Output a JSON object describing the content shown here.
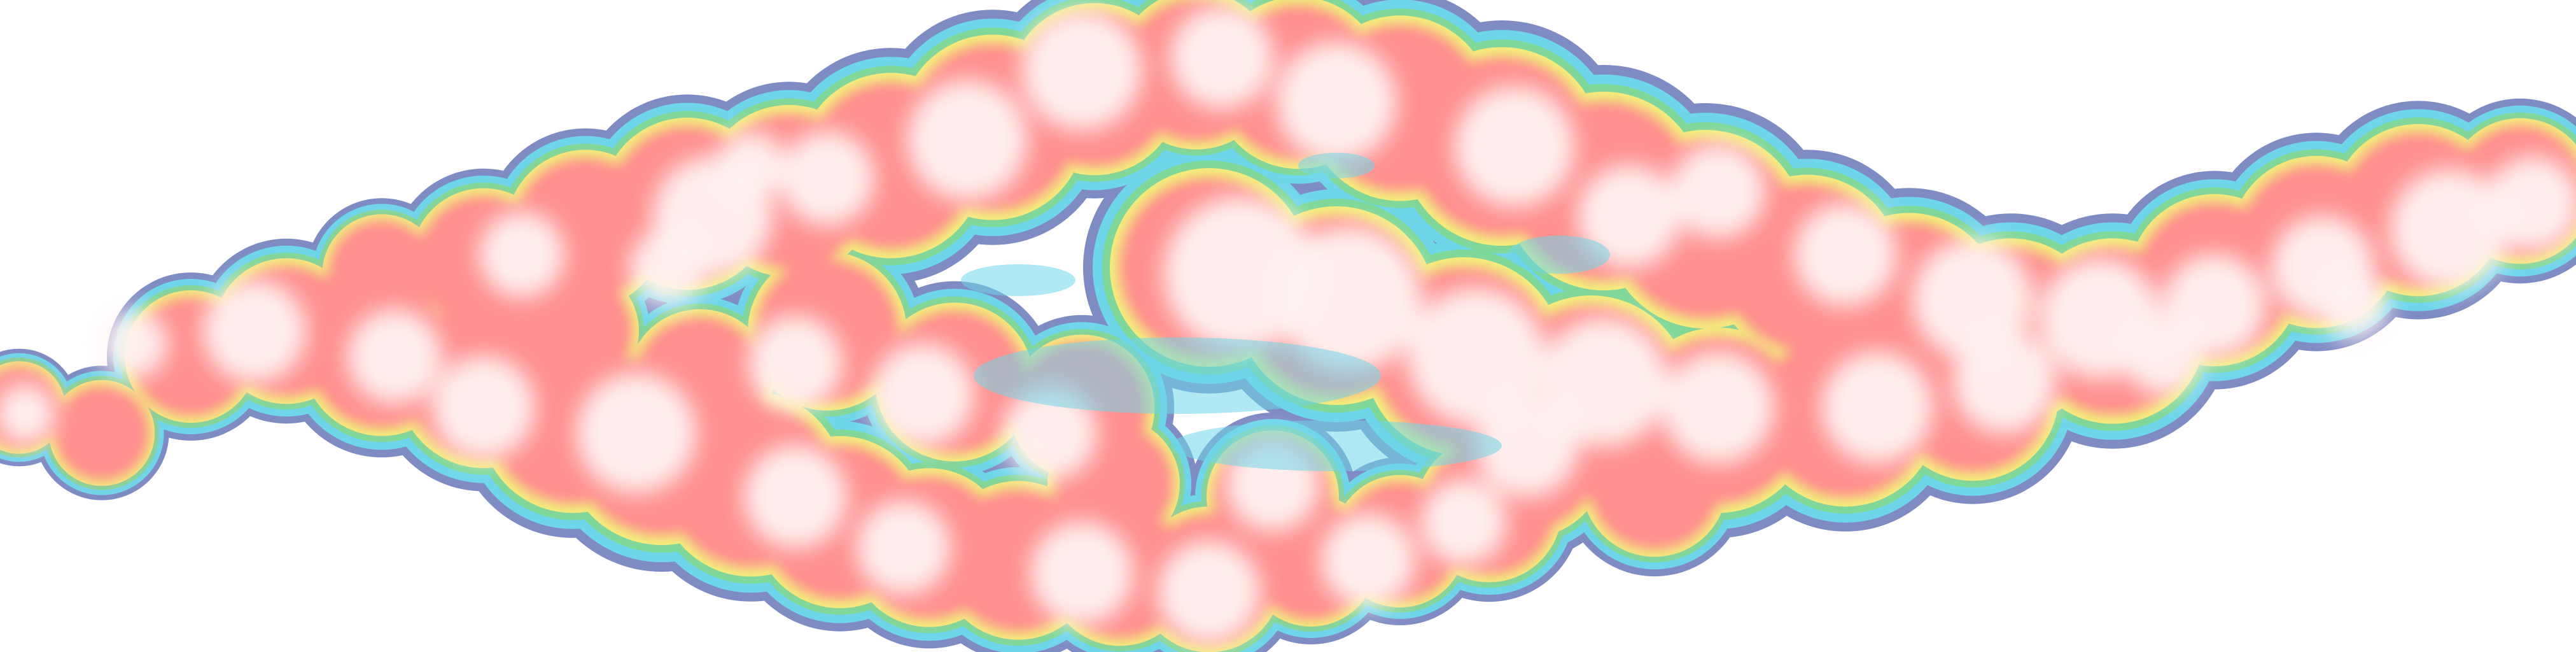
{
  "image": {
    "subject": "density-heatmap",
    "background_color": "#ffffff",
    "palette": {
      "outer_halo": "#7f8cc4",
      "cyan": "#6fd6ea",
      "green": "#7dd99a",
      "yellow": "#f2f27a",
      "orange": "#f5b07a",
      "red": "#ff8f8f",
      "core": "#fff3f2"
    }
  }
}
